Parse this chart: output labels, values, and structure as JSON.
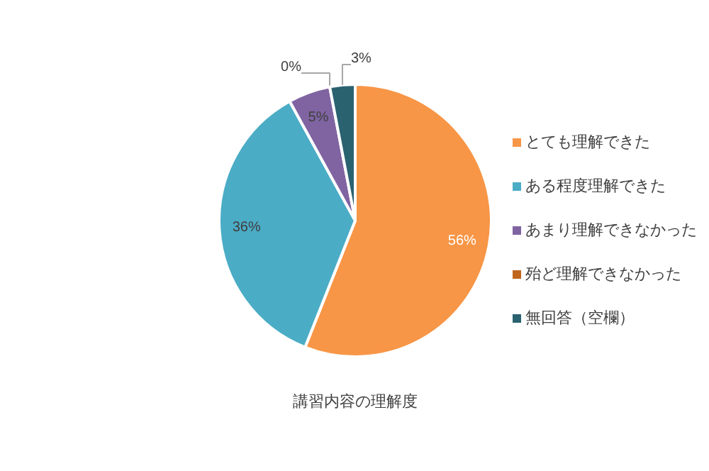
{
  "chart_data": {
    "type": "pie",
    "title": "講習内容の理解度",
    "categories": [
      "とても理解できた",
      "ある程度理解できた",
      "あまり理解できなかった",
      "殆ど理解できなかった",
      "無回答（空欄）"
    ],
    "values": [
      56,
      36,
      5,
      0,
      3
    ],
    "colors": [
      "#f79646",
      "#4bacc6",
      "#8064a2",
      "#c0651c",
      "#2a6270"
    ],
    "value_labels": [
      "56%",
      "36%",
      "5%",
      "0%",
      "3%"
    ],
    "legend": "right"
  }
}
